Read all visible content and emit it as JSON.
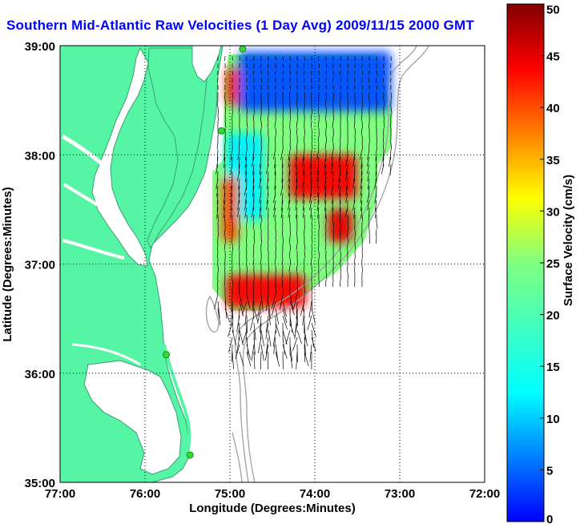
{
  "title": "Southern Mid-Atlantic Raw Velocities (1 Day Avg) 2009/11/15 2000 GMT",
  "colors": {
    "land": "#55f5a5",
    "coast_line": "#3aa070",
    "bathymetry": "#a0a0a0",
    "station": "#32dc32",
    "arrows": "#000000",
    "title": "#0000ff"
  },
  "chart_data": {
    "type": "heatmap",
    "subtype": "vector field over map",
    "xlabel": "Longitude (Degrees:Minutes)",
    "ylabel": "Latitude (Degrees:Minutes)",
    "xlim": [
      -77,
      -72
    ],
    "ylim": [
      35,
      39
    ],
    "x_ticks": [
      -77,
      -76,
      -75,
      -74,
      -73,
      -72
    ],
    "x_tick_labels": [
      "77:00",
      "76:00",
      "75:00",
      "74:00",
      "73:00",
      "72:00"
    ],
    "y_ticks": [
      35,
      36,
      37,
      38,
      39
    ],
    "y_tick_labels": [
      "35:00",
      "36:00",
      "37:00",
      "38:00",
      "39:00"
    ],
    "grid": true,
    "colorbar": {
      "label": "Surface Velocity (cm/s)",
      "min": 0,
      "max": 50,
      "ticks": [
        0,
        5,
        10,
        15,
        20,
        25,
        30,
        35,
        40,
        45,
        50
      ],
      "colormap": "jet"
    },
    "stations": [
      {
        "lon": -74.85,
        "lat": 38.97
      },
      {
        "lon": -75.1,
        "lat": 38.22
      },
      {
        "lon": -75.75,
        "lat": 36.17
      },
      {
        "lon": -75.47,
        "lat": 35.25
      }
    ],
    "speed_regions": [
      {
        "lon": [
          -74.9,
          -73.1
        ],
        "lat": [
          38.4,
          38.95
        ],
        "speed": 10
      },
      {
        "lon": [
          -75.05,
          -74.6
        ],
        "lat": [
          37.4,
          38.2
        ],
        "speed": 18
      },
      {
        "lon": [
          -74.3,
          -73.5
        ],
        "lat": [
          37.6,
          38.0
        ],
        "speed": 44
      },
      {
        "lon": [
          -73.85,
          -73.55
        ],
        "lat": [
          37.2,
          37.5
        ],
        "speed": 45
      },
      {
        "lon": [
          -75.05,
          -74.1
        ],
        "lat": [
          36.6,
          36.9
        ],
        "speed": 44
      },
      {
        "lon": [
          -75.1,
          -74.9
        ],
        "lat": [
          37.2,
          37.8
        ],
        "speed": 40
      },
      {
        "lon": [
          -75.05,
          -74.9
        ],
        "lat": [
          38.45,
          38.8
        ],
        "speed": 42
      }
    ]
  }
}
